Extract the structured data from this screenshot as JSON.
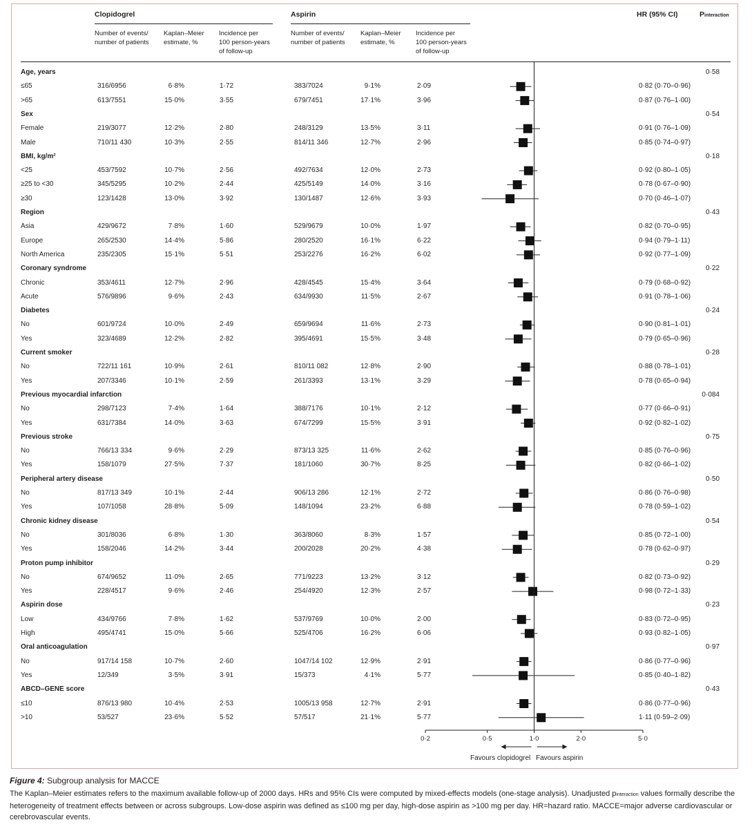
{
  "header": {
    "clopidogrel": "Clopidogrel",
    "aspirin": "Aspirin",
    "hr": "HR (95% CI)",
    "p_interaction_main": "P",
    "p_interaction_sub": "interaction",
    "col_events": [
      "Number of events/",
      "number of patients"
    ],
    "col_km": [
      "Kaplan–Meier",
      "estimate, %"
    ],
    "col_incidence": [
      "Incidence per",
      "100 person-years",
      "of follow-up"
    ]
  },
  "rows": [
    {
      "type": "group",
      "label": "Age, years",
      "p": "0·58"
    },
    {
      "type": "sub",
      "label": "≤65",
      "c_ev": "316/6956",
      "c_km": "6·8%",
      "c_inc": "1·72",
      "a_ev": "383/7024",
      "a_km": "9·1%",
      "a_inc": "2·09",
      "hr_text": "0·82 (0·70–0·96)"
    },
    {
      "type": "sub",
      "label": ">65",
      "c_ev": "613/7551",
      "c_km": "15·0%",
      "c_inc": "3·55",
      "a_ev": "679/7451",
      "a_km": "17·1%",
      "a_inc": "3·96",
      "hr_text": "0·87 (0·76–1·00)"
    },
    {
      "type": "group",
      "label": "Sex",
      "p": "0·54"
    },
    {
      "type": "sub",
      "label": "Female",
      "c_ev": "219/3077",
      "c_km": "12·2%",
      "c_inc": "2·80",
      "a_ev": "248/3129",
      "a_km": "13·5%",
      "a_inc": "3·11",
      "hr_text": "0·91 (0·76–1·09)"
    },
    {
      "type": "sub",
      "label": "Male",
      "c_ev": "710/11 430",
      "c_km": "10·3%",
      "c_inc": "2·55",
      "a_ev": "814/11 346",
      "a_km": "12·7%",
      "a_inc": "2·96",
      "hr_text": "0·85 (0·74–0·97)"
    },
    {
      "type": "group",
      "label": "BMI, kg/m²",
      "p": "0·18"
    },
    {
      "type": "sub",
      "label": "<25",
      "c_ev": "453/7592",
      "c_km": "10·7%",
      "c_inc": "2·56",
      "a_ev": "492/7634",
      "a_km": "12·0%",
      "a_inc": "2·73",
      "hr_text": "0·92 (0·80–1·05)"
    },
    {
      "type": "sub",
      "label": "≥25 to <30",
      "c_ev": "345/5295",
      "c_km": "10·2%",
      "c_inc": "2·44",
      "a_ev": "425/5149",
      "a_km": "14·0%",
      "a_inc": "3·16",
      "hr_text": "0·78 (0·67–0·90)"
    },
    {
      "type": "sub",
      "label": "≥30",
      "c_ev": "123/1428",
      "c_km": "13·0%",
      "c_inc": "3·92",
      "a_ev": "130/1487",
      "a_km": "12·6%",
      "a_inc": "3·93",
      "hr_text": "0·70 (0·46–1·07)"
    },
    {
      "type": "group",
      "label": "Region",
      "p": "0·43"
    },
    {
      "type": "sub",
      "label": "Asia",
      "c_ev": "429/9672",
      "c_km": "7·8%",
      "c_inc": "1·60",
      "a_ev": "529/9679",
      "a_km": "10·0%",
      "a_inc": "1·97",
      "hr_text": "0·82 (0·70–0·95)"
    },
    {
      "type": "sub",
      "label": "Europe",
      "c_ev": "265/2530",
      "c_km": "14·4%",
      "c_inc": "5·86",
      "a_ev": "280/2520",
      "a_km": "16·1%",
      "a_inc": "6·22",
      "hr_text": "0·94 (0·79–1·11)"
    },
    {
      "type": "sub",
      "label": "North America",
      "c_ev": "235/2305",
      "c_km": "15·1%",
      "c_inc": "5·51",
      "a_ev": "253/2276",
      "a_km": "16·2%",
      "a_inc": "6·02",
      "hr_text": "0·92 (0·77–1·09)"
    },
    {
      "type": "group",
      "label": "Coronary syndrome",
      "p": "0·22"
    },
    {
      "type": "sub",
      "label": "Chronic",
      "c_ev": "353/4611",
      "c_km": "12·7%",
      "c_inc": "2·96",
      "a_ev": "428/4545",
      "a_km": "15·4%",
      "a_inc": "3·64",
      "hr_text": "0·79 (0·68–0·92)"
    },
    {
      "type": "sub",
      "label": "Acute",
      "c_ev": "576/9896",
      "c_km": "9·6%",
      "c_inc": "2·43",
      "a_ev": "634/9930",
      "a_km": "11·5%",
      "a_inc": "2·67",
      "hr_text": "0·91 (0·78–1·06)"
    },
    {
      "type": "group",
      "label": "Diabetes",
      "p": "0·24"
    },
    {
      "type": "sub",
      "label": "No",
      "c_ev": "601/9724",
      "c_km": "10·0%",
      "c_inc": "2·49",
      "a_ev": "659/9694",
      "a_km": "11·6%",
      "a_inc": "2·73",
      "hr_text": "0·90 (0·81–1·01)"
    },
    {
      "type": "sub",
      "label": "Yes",
      "c_ev": "323/4689",
      "c_km": "12·2%",
      "c_inc": "2·82",
      "a_ev": "395/4691",
      "a_km": "15·5%",
      "a_inc": "3·48",
      "hr_text": "0·79 (0·65–0·96)"
    },
    {
      "type": "group",
      "label": "Current smoker",
      "p": "0·28"
    },
    {
      "type": "sub",
      "label": "No",
      "c_ev": "722/11 161",
      "c_km": "10·9%",
      "c_inc": "2·61",
      "a_ev": "810/11 082",
      "a_km": "12·8%",
      "a_inc": "2·90",
      "hr_text": "0·88 (0·78–1·01)"
    },
    {
      "type": "sub",
      "label": "Yes",
      "c_ev": "207/3346",
      "c_km": "10·1%",
      "c_inc": "2·59",
      "a_ev": "261/3393",
      "a_km": "13·1%",
      "a_inc": "3·29",
      "hr_text": "0·78 (0·65–0·94)"
    },
    {
      "type": "group",
      "label": "Previous myocardial infarction",
      "p": "0·084"
    },
    {
      "type": "sub",
      "label": "No",
      "c_ev": "298/7123",
      "c_km": "7·4%",
      "c_inc": "1·64",
      "a_ev": "388/7176",
      "a_km": "10·1%",
      "a_inc": "2·12",
      "hr_text": "0·77 (0·66–0·91)"
    },
    {
      "type": "sub",
      "label": "Yes",
      "c_ev": "631/7384",
      "c_km": "14·0%",
      "c_inc": "3·63",
      "a_ev": "674/7299",
      "a_km": "15·5%",
      "a_inc": "3·91",
      "hr_text": "0·92 (0·82–1·02)"
    },
    {
      "type": "group",
      "label": "Previous stroke",
      "p": "0·75"
    },
    {
      "type": "sub",
      "label": "No",
      "c_ev": "766/13 334",
      "c_km": "9·6%",
      "c_inc": "2·29",
      "a_ev": "873/13 325",
      "a_km": "11·6%",
      "a_inc": "2·62",
      "hr_text": "0·85 (0·76–0·96)"
    },
    {
      "type": "sub",
      "label": "Yes",
      "c_ev": "158/1079",
      "c_km": "27·5%",
      "c_inc": "7·37",
      "a_ev": "181/1060",
      "a_km": "30·7%",
      "a_inc": "8·25",
      "hr_text": "0·82 (0·66–1·02)"
    },
    {
      "type": "group",
      "label": "Peripheral artery disease",
      "p": "0·50"
    },
    {
      "type": "sub",
      "label": "No",
      "c_ev": "817/13 349",
      "c_km": "10·1%",
      "c_inc": "2·44",
      "a_ev": "906/13 286",
      "a_km": "12·1%",
      "a_inc": "2·72",
      "hr_text": "0·86 (0·76–0·98)"
    },
    {
      "type": "sub",
      "label": "Yes",
      "c_ev": "107/1058",
      "c_km": "28·8%",
      "c_inc": "5·09",
      "a_ev": "148/1094",
      "a_km": "23·2%",
      "a_inc": "6·88",
      "hr_text": "0·78 (0·59–1·02)"
    },
    {
      "type": "group",
      "label": "Chronic kidney disease",
      "p": "0·54"
    },
    {
      "type": "sub",
      "label": "No",
      "c_ev": "301/8036",
      "c_km": "6·8%",
      "c_inc": "1·30",
      "a_ev": "363/8060",
      "a_km": "8·3%",
      "a_inc": "1·57",
      "hr_text": "0·85 (0·72–1·00)"
    },
    {
      "type": "sub",
      "label": "Yes",
      "c_ev": "158/2046",
      "c_km": "14·2%",
      "c_inc": "3·44",
      "a_ev": "200/2028",
      "a_km": "20·2%",
      "a_inc": "4·38",
      "hr_text": "0·78 (0·62–0·97)"
    },
    {
      "type": "group",
      "label": "Proton pump inhibitor",
      "p": "0·29"
    },
    {
      "type": "sub",
      "label": "No",
      "c_ev": "674/9652",
      "c_km": "11·0%",
      "c_inc": "2·65",
      "a_ev": "771/9223",
      "a_km": "13·2%",
      "a_inc": "3·12",
      "hr_text": "0·82 (0·73–0·92)"
    },
    {
      "type": "sub",
      "label": "Yes",
      "c_ev": "228/4517",
      "c_km": "9·6%",
      "c_inc": "2·46",
      "a_ev": "254/4920",
      "a_km": "12·3%",
      "a_inc": "2·57",
      "hr_text": "0·98 (0·72–1·33)"
    },
    {
      "type": "group",
      "label": "Aspirin dose",
      "p": "0·23"
    },
    {
      "type": "sub",
      "label": "Low",
      "c_ev": "434/9766",
      "c_km": "7·8%",
      "c_inc": "1·62",
      "a_ev": "537/9769",
      "a_km": "10·0%",
      "a_inc": "2·00",
      "hr_text": "0·83 (0·72–0·95)"
    },
    {
      "type": "sub",
      "label": "High",
      "c_ev": "495/4741",
      "c_km": "15·0%",
      "c_inc": "5·66",
      "a_ev": "525/4706",
      "a_km": "16·2%",
      "a_inc": "6·06",
      "hr_text": "0·93 (0·82–1·05)"
    },
    {
      "type": "group",
      "label": "Oral anticoagulation",
      "p": "0·97"
    },
    {
      "type": "sub",
      "label": "No",
      "c_ev": "917/14 158",
      "c_km": "10·7%",
      "c_inc": "2·60",
      "a_ev": "1047/14 102",
      "a_km": "12·9%",
      "a_inc": "2·91",
      "hr_text": "0·86 (0·77–0·96)"
    },
    {
      "type": "sub",
      "label": "Yes",
      "c_ev": "12/349",
      "c_km": "3·5%",
      "c_inc": "3·91",
      "a_ev": "15/373",
      "a_km": "4·1%",
      "a_inc": "5·77",
      "hr_text": "0·85 (0·40–1·82)"
    },
    {
      "type": "group",
      "label": "ABCD–GENE score",
      "p": "0·43"
    },
    {
      "type": "sub",
      "label": "≤10",
      "c_ev": "876/13 980",
      "c_km": "10·4%",
      "c_inc": "2·53",
      "a_ev": "1005/13 958",
      "a_km": "12·7%",
      "a_inc": "2·91",
      "hr_text": "0·86 (0·77–0·96)"
    },
    {
      "type": "sub",
      "label": ">10",
      "c_ev": "53/527",
      "c_km": "23·6%",
      "c_inc": "5·52",
      "a_ev": "57/517",
      "a_km": "21·1%",
      "a_inc": "5·77",
      "hr_text": "1·11 (0·59–2·09)"
    }
  ],
  "chart_data": {
    "type": "forest",
    "scale": "log",
    "xlim": [
      0.2,
      5.0
    ],
    "reference_line": 1.0,
    "xticks": [
      0.2,
      0.5,
      1.0,
      2.0,
      5.0
    ],
    "xtick_labels": [
      "0·2",
      "0·5",
      "1·0",
      "2·0",
      "5·0"
    ],
    "favours_left": "Favours clopidogrel",
    "favours_right": "Favours aspirin",
    "points": [
      {
        "subgroup": "Age ≤65",
        "hr": 0.82,
        "lo": 0.7,
        "hi": 0.96
      },
      {
        "subgroup": "Age >65",
        "hr": 0.87,
        "lo": 0.76,
        "hi": 1.0
      },
      {
        "subgroup": "Female",
        "hr": 0.91,
        "lo": 0.76,
        "hi": 1.09
      },
      {
        "subgroup": "Male",
        "hr": 0.85,
        "lo": 0.74,
        "hi": 0.97
      },
      {
        "subgroup": "BMI <25",
        "hr": 0.92,
        "lo": 0.8,
        "hi": 1.05
      },
      {
        "subgroup": "BMI ≥25 to <30",
        "hr": 0.78,
        "lo": 0.67,
        "hi": 0.9
      },
      {
        "subgroup": "BMI ≥30",
        "hr": 0.7,
        "lo": 0.46,
        "hi": 1.07
      },
      {
        "subgroup": "Asia",
        "hr": 0.82,
        "lo": 0.7,
        "hi": 0.95
      },
      {
        "subgroup": "Europe",
        "hr": 0.94,
        "lo": 0.79,
        "hi": 1.11
      },
      {
        "subgroup": "North America",
        "hr": 0.92,
        "lo": 0.77,
        "hi": 1.09
      },
      {
        "subgroup": "Chronic coronary syndrome",
        "hr": 0.79,
        "lo": 0.68,
        "hi": 0.92
      },
      {
        "subgroup": "Acute coronary syndrome",
        "hr": 0.91,
        "lo": 0.78,
        "hi": 1.06
      },
      {
        "subgroup": "Diabetes No",
        "hr": 0.9,
        "lo": 0.81,
        "hi": 1.01
      },
      {
        "subgroup": "Diabetes Yes",
        "hr": 0.79,
        "lo": 0.65,
        "hi": 0.96
      },
      {
        "subgroup": "Current smoker No",
        "hr": 0.88,
        "lo": 0.78,
        "hi": 1.01
      },
      {
        "subgroup": "Current smoker Yes",
        "hr": 0.78,
        "lo": 0.65,
        "hi": 0.94
      },
      {
        "subgroup": "Previous MI No",
        "hr": 0.77,
        "lo": 0.66,
        "hi": 0.91
      },
      {
        "subgroup": "Previous MI Yes",
        "hr": 0.92,
        "lo": 0.82,
        "hi": 1.02
      },
      {
        "subgroup": "Previous stroke No",
        "hr": 0.85,
        "lo": 0.76,
        "hi": 0.96
      },
      {
        "subgroup": "Previous stroke Yes",
        "hr": 0.82,
        "lo": 0.66,
        "hi": 1.02
      },
      {
        "subgroup": "PAD No",
        "hr": 0.86,
        "lo": 0.76,
        "hi": 0.98
      },
      {
        "subgroup": "PAD Yes",
        "hr": 0.78,
        "lo": 0.59,
        "hi": 1.02
      },
      {
        "subgroup": "CKD No",
        "hr": 0.85,
        "lo": 0.72,
        "hi": 1.0
      },
      {
        "subgroup": "CKD Yes",
        "hr": 0.78,
        "lo": 0.62,
        "hi": 0.97
      },
      {
        "subgroup": "PPI No",
        "hr": 0.82,
        "lo": 0.73,
        "hi": 0.92
      },
      {
        "subgroup": "PPI Yes",
        "hr": 0.98,
        "lo": 0.72,
        "hi": 1.33
      },
      {
        "subgroup": "Aspirin dose Low",
        "hr": 0.83,
        "lo": 0.72,
        "hi": 0.95
      },
      {
        "subgroup": "Aspirin dose High",
        "hr": 0.93,
        "lo": 0.82,
        "hi": 1.05
      },
      {
        "subgroup": "Oral anticoagulation No",
        "hr": 0.86,
        "lo": 0.77,
        "hi": 0.96
      },
      {
        "subgroup": "Oral anticoagulation Yes",
        "hr": 0.85,
        "lo": 0.4,
        "hi": 1.82
      },
      {
        "subgroup": "ABCD–GENE ≤10",
        "hr": 0.86,
        "lo": 0.77,
        "hi": 0.96
      },
      {
        "subgroup": "ABCD–GENE >10",
        "hr": 1.11,
        "lo": 0.59,
        "hi": 2.09
      }
    ]
  },
  "caption": {
    "figure_label": "Figure 4:",
    "title": " Subgroup analysis for MACCE",
    "body_part1": "The Kaplan–Meier estimates refers to the maximum available follow-up of 2000 days. HRs and 95% CIs were computed by mixed-effects models (one-stage analysis). Unadjusted p",
    "body_sub": "interaction",
    "body_part2": " values formally describe the heterogeneity of treatment effects between or across subgroups. Low-dose aspirin was defined as ≤100 mg per day, high-dose aspirin as >100 mg per day. HR=hazard ratio. MACCE=major adverse cardiovascular or cerebrovascular events."
  }
}
